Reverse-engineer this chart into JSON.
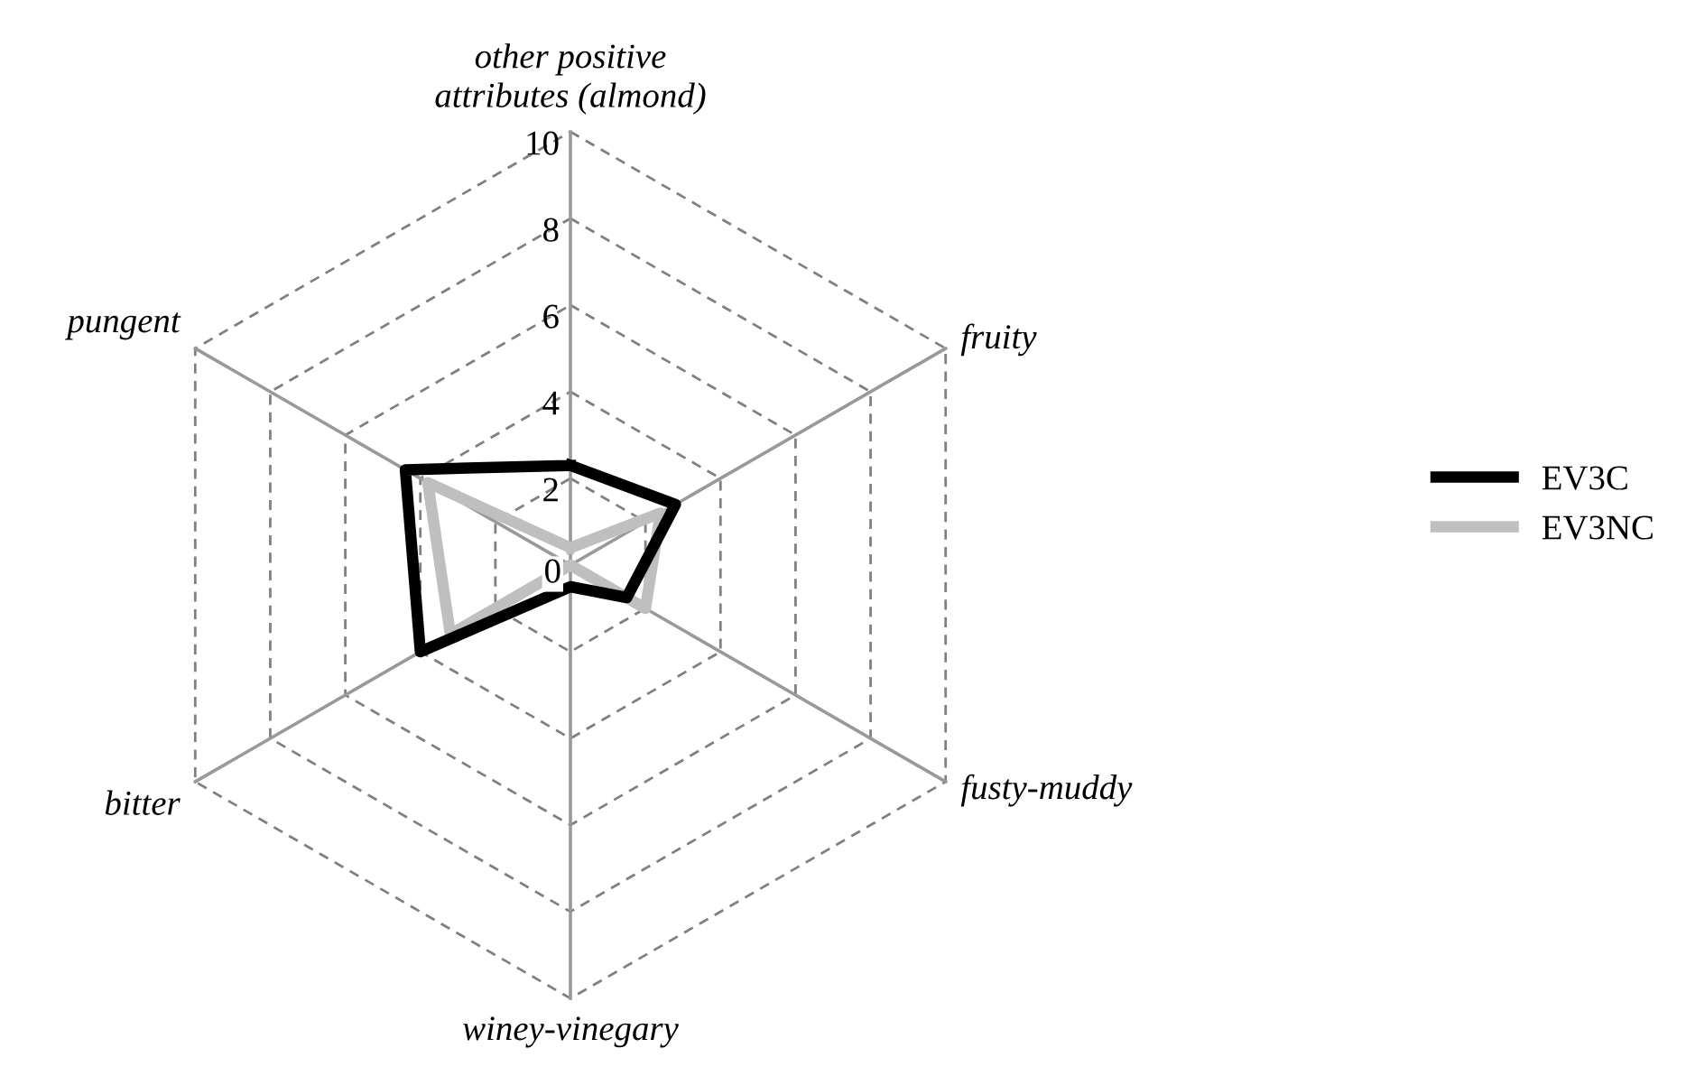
{
  "chart_data": {
    "type": "radar",
    "categories": [
      "other positive\nattributes (almond)",
      "fruity",
      "fusty-muddy",
      "winey-vinegary",
      "bitter",
      "pungent"
    ],
    "series": [
      {
        "name": "EV3C",
        "color": "#000000",
        "values": [
          2.3,
          2.8,
          1.5,
          0.5,
          4.0,
          4.4
        ]
      },
      {
        "name": "EV3NC",
        "color": "#bfbfbf",
        "values": [
          0.4,
          2.4,
          2.0,
          0.0,
          3.2,
          3.8
        ]
      }
    ],
    "ylim": [
      0,
      10
    ],
    "yticks": [
      0,
      2,
      4,
      6,
      8,
      10
    ],
    "grid": true,
    "legend": "right",
    "marker": "none",
    "line_style": "solid"
  }
}
